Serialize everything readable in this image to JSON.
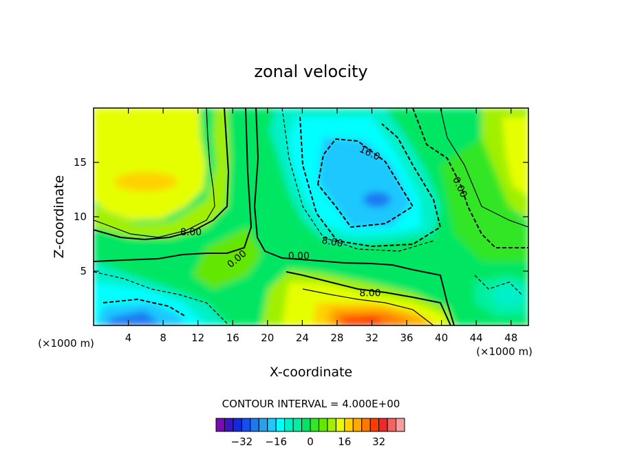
{
  "chart_data": {
    "type": "heatmap",
    "subtype": "filled-contour",
    "title": "zonal velocity",
    "xlabel": "X-coordinate",
    "ylabel": "Z-coordinate",
    "x_unit": "(×1000 m)",
    "z_unit": "(×1000 m)",
    "xlim": [
      0,
      50
    ],
    "ylim": [
      0,
      20
    ],
    "x_ticks": [
      4,
      8,
      12,
      16,
      20,
      24,
      28,
      32,
      36,
      40,
      44,
      48
    ],
    "y_ticks": [
      5,
      10,
      15
    ],
    "contour_interval_text": "CONTOUR INTERVAL = 4.000E+00",
    "contour_labels": [
      {
        "text": "16.0",
        "x": 31.6,
        "y": 15.6,
        "angle": 25
      },
      {
        "text": "0.00",
        "x": 41.8,
        "y": 12.6,
        "angle": 65
      },
      {
        "text": "8.00",
        "x": 11.2,
        "y": 8.3,
        "angle": 0
      },
      {
        "text": "8.00",
        "x": 27.4,
        "y": 7.4,
        "angle": 10
      },
      {
        "text": "0.00",
        "x": 16.7,
        "y": 5.9,
        "angle": -40
      },
      {
        "text": "0.00",
        "x": 23.6,
        "y": 6.1,
        "angle": 0
      },
      {
        "text": "8.00",
        "x": 31.8,
        "y": 2.7,
        "angle": 0
      }
    ],
    "colorbar": {
      "tick_labels": [
        "-32",
        "-16",
        "0",
        "16",
        "32"
      ],
      "tick_values": [
        -32,
        -16,
        0,
        16,
        32
      ],
      "levels": [
        -40,
        -36,
        -32,
        -28,
        -24,
        -20,
        -16,
        -12,
        -8,
        -4,
        0,
        4,
        8,
        12,
        16,
        20,
        24,
        28,
        32,
        36,
        40
      ],
      "colors": [
        "#7a0ab4",
        "#3c14c8",
        "#1428dc",
        "#1450f0",
        "#1e78f0",
        "#28a0f0",
        "#1ec8ff",
        "#00ffff",
        "#00f0c8",
        "#00f0a0",
        "#00e664",
        "#32e628",
        "#64e600",
        "#a0f000",
        "#e6ff00",
        "#ffd200",
        "#ffaa00",
        "#ff7800",
        "#ff3c00",
        "#f02828",
        "#f06464",
        "#f5a0a0"
      ]
    }
  }
}
